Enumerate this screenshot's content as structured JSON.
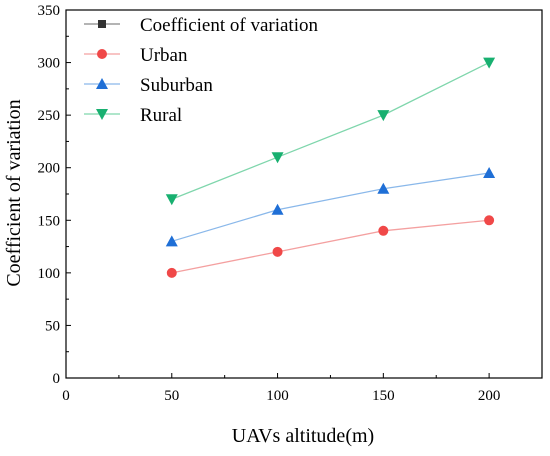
{
  "chart_data": {
    "type": "line",
    "title": "",
    "xlabel": "UAVs altitude(m)",
    "ylabel": "Coefficient of variation",
    "xlim": [
      0,
      225
    ],
    "ylim": [
      0,
      350
    ],
    "xticks": [
      0,
      50,
      100,
      150,
      200
    ],
    "yticks": [
      0,
      50,
      100,
      150,
      200,
      250,
      300,
      350
    ],
    "x": [
      50,
      100,
      150,
      200
    ],
    "grid": false,
    "legend_position": "top-left",
    "legend_header": {
      "name": "Coefficient of variation",
      "color": "#333333",
      "marker": "square"
    },
    "series": [
      {
        "name": "Urban",
        "values": [
          100,
          120,
          140,
          150
        ],
        "color": "#f04848",
        "line_color": "#f4a0a0",
        "marker": "circle"
      },
      {
        "name": "Suburban",
        "values": [
          130,
          160,
          180,
          195
        ],
        "color": "#1f6fd6",
        "line_color": "#8ab8ea",
        "marker": "triangle-up"
      },
      {
        "name": "Rural",
        "values": [
          170,
          210,
          250,
          300
        ],
        "color": "#18b070",
        "line_color": "#7fd6ac",
        "marker": "triangle-down"
      }
    ]
  }
}
